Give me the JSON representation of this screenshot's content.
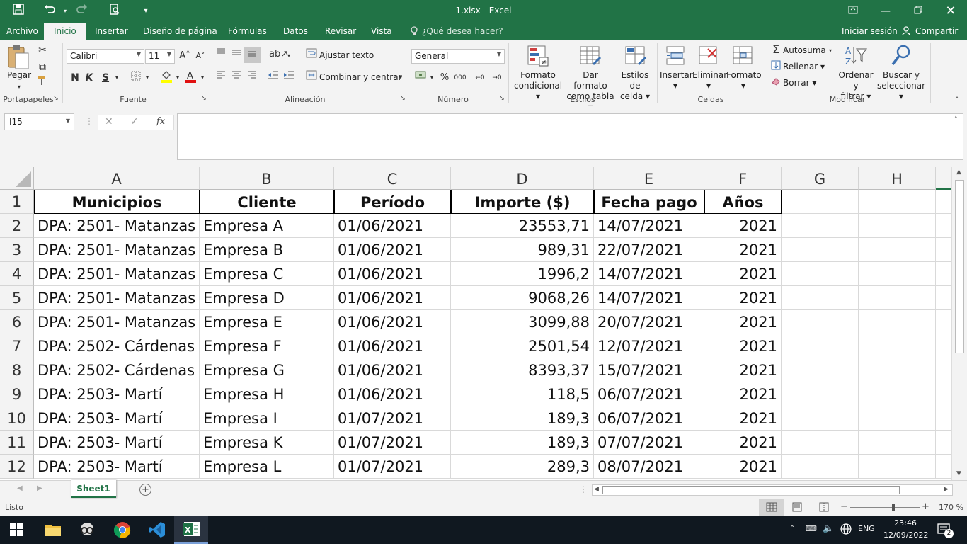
{
  "window": {
    "title": "1.xlsx  -  Excel",
    "controls": [
      "ribbon-display-icon",
      "minimize-icon",
      "restore-icon",
      "close-icon"
    ]
  },
  "tabs": {
    "items": [
      "Archivo",
      "Inicio",
      "Insertar",
      "Diseño de página",
      "Fórmulas",
      "Datos",
      "Revisar",
      "Vista"
    ],
    "tell_me": "¿Qué desea hacer?",
    "signin": "Iniciar sesión",
    "share": "Compartir"
  },
  "ribbon": {
    "clipboard": {
      "paste": "Pegar",
      "label": "Portapapeles"
    },
    "font": {
      "name": "Calibri",
      "size": "11",
      "label": "Fuente",
      "bold": "N",
      "italic": "K",
      "underline": "S"
    },
    "alignment": {
      "wrap": "Ajustar texto",
      "merge": "Combinar y centrar",
      "label": "Alineación"
    },
    "number": {
      "format": "General",
      "percent": "%",
      "thousands": "000",
      "label": "Número"
    },
    "styles": {
      "conditional": "Formato\ncondicional",
      "table": "Dar formato\ncomo tabla",
      "cell": "Estilos de\ncelda",
      "label": "Estilos"
    },
    "cells": {
      "insert": "Insertar",
      "delete": "Eliminar",
      "format": "Formato",
      "label": "Celdas"
    },
    "editing": {
      "autosum": "Autosuma",
      "fill": "Rellenar",
      "clear": "Borrar",
      "sort": "Ordenar y\nfiltrar",
      "find": "Buscar y\nseleccionar",
      "label": "Modificar"
    }
  },
  "formula_bar": {
    "name_box": "I15",
    "fx": "fx",
    "content": ""
  },
  "columns": [
    "A",
    "B",
    "C",
    "D",
    "E",
    "F",
    "G",
    "H"
  ],
  "rows": [
    "1",
    "2",
    "3",
    "4",
    "5",
    "6",
    "7",
    "8",
    "9",
    "10",
    "11",
    "12"
  ],
  "table": {
    "headers": [
      "Municipios",
      "Cliente",
      "Período",
      "Importe ($)",
      "Fecha pago",
      "Años"
    ],
    "data": [
      [
        "DPA: 2501- Matanzas",
        "Empresa A",
        "01/06/2021",
        "23553,71",
        "14/07/2021",
        "2021"
      ],
      [
        "DPA: 2501- Matanzas",
        "Empresa B",
        "01/06/2021",
        "989,31",
        "22/07/2021",
        "2021"
      ],
      [
        "DPA: 2501- Matanzas",
        "Empresa C",
        "01/06/2021",
        "1996,2",
        "14/07/2021",
        "2021"
      ],
      [
        "DPA: 2501- Matanzas",
        "Empresa D",
        "01/06/2021",
        "9068,26",
        "14/07/2021",
        "2021"
      ],
      [
        "DPA: 2501- Matanzas",
        "Empresa E",
        "01/06/2021",
        "3099,88",
        "20/07/2021",
        "2021"
      ],
      [
        "DPA: 2502- Cárdenas",
        "Empresa F",
        "01/06/2021",
        "2501,54",
        "12/07/2021",
        "2021"
      ],
      [
        "DPA: 2502- Cárdenas",
        "Empresa G",
        "01/06/2021",
        "8393,37",
        "15/07/2021",
        "2021"
      ],
      [
        "DPA: 2503- Martí",
        "Empresa H",
        "01/06/2021",
        "118,5",
        "06/07/2021",
        "2021"
      ],
      [
        "DPA: 2503- Martí",
        "Empresa I",
        "01/07/2021",
        "189,3",
        "06/07/2021",
        "2021"
      ],
      [
        "DPA: 2503- Martí",
        "Empresa K",
        "01/07/2021",
        "189,3",
        "07/07/2021",
        "2021"
      ],
      [
        "DPA: 2503- Martí",
        "Empresa L",
        "01/07/2021",
        "289,3",
        "08/07/2021",
        "2021"
      ]
    ]
  },
  "sheets": [
    "Sheet1"
  ],
  "status": {
    "text": "Listo",
    "zoom": "170 %"
  },
  "taskbar": {
    "lang": "ENG",
    "time": "23:46",
    "date": "12/09/2022",
    "notifications": "2"
  }
}
